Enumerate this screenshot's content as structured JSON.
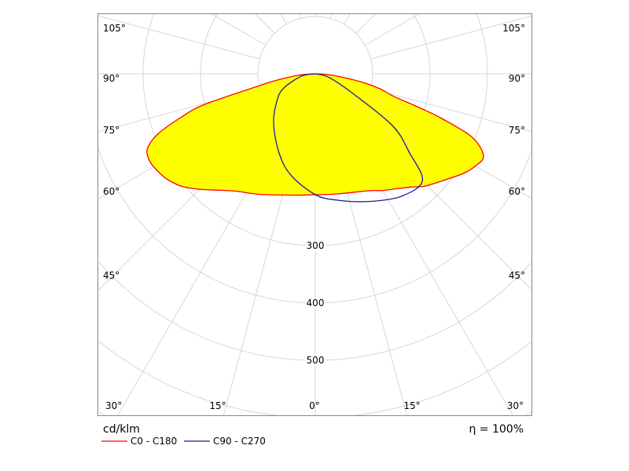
{
  "chart_data": {
    "type": "polar",
    "title": "",
    "unit_label": "cd/klm",
    "efficiency_label": "η = 100%",
    "radial_ticks": [
      100,
      200,
      300,
      400,
      500,
      600,
      700,
      800
    ],
    "radial_tick_labels": [
      "300",
      "400",
      "500"
    ],
    "angle_labels": {
      "105": "105°",
      "90": "90°",
      "75": "75°",
      "60": "60°",
      "45": "45°",
      "30": "30°",
      "15": "15°",
      "0": "0°"
    },
    "grid": true,
    "angle_step_deg": 15,
    "legend_position": "bottom-left",
    "series": [
      {
        "name": "C0 - C180",
        "color": "#ff0000",
        "fill": "#ffff00",
        "right_plane": "C0",
        "left_plane": "C180",
        "right": {
          "gamma": [
            0,
            10,
            25,
            30,
            40,
            44,
            50,
            56,
            60,
            64,
            68,
            70.6,
            72,
            74,
            77,
            80,
            85,
            90
          ],
          "value": [
            211,
            213,
            225,
            235,
            258,
            273,
            290,
            311,
            322,
            326,
            294,
            231,
            190,
            141,
            115,
            80,
            30,
            0
          ]
        },
        "left": {
          "gamma": [
            0,
            10,
            25,
            34,
            40,
            45,
            50,
            55,
            60,
            63,
            66,
            69,
            72,
            74.5,
            78,
            80,
            85,
            90
          ],
          "value": [
            211,
            215,
            232,
            247,
            265,
            285,
            305,
            318,
            325,
            326,
            320,
            294,
            246,
            200,
            99,
            75,
            30,
            0
          ]
        }
      },
      {
        "name": "C90 - C270",
        "color": "#1a1aa0",
        "right_plane": "C90",
        "left_plane": "C270",
        "right": {
          "gamma": [
            0,
            10,
            23,
            35,
            45,
            50,
            56,
            62,
            75,
            90
          ],
          "value": [
            211,
            224,
            242,
            261,
            264,
            214,
            163,
            76,
            25,
            0
          ]
        },
        "left": {
          "gamma": [
            0,
            13.5,
            24.5,
            40,
            54,
            65,
            80,
            90
          ],
          "value": [
            211,
            182,
            152,
            113,
            83,
            62,
            25,
            0
          ]
        }
      }
    ]
  }
}
